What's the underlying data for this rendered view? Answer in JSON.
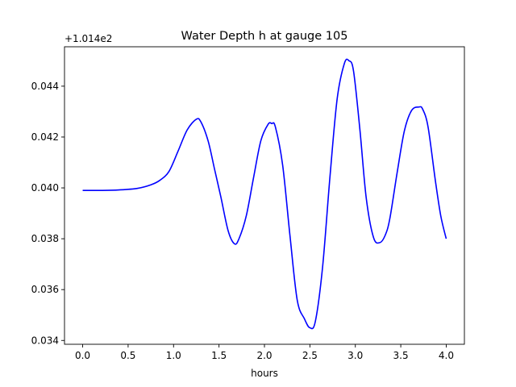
{
  "chart_data": {
    "type": "line",
    "title": "Water Depth h at gauge 105",
    "xlabel": "hours",
    "ylabel": "",
    "offset_label": "+1.014e2",
    "xlim": [
      -0.2,
      4.2
    ],
    "ylim": [
      0.03385,
      0.04555
    ],
    "xticks": [
      0.0,
      0.5,
      1.0,
      1.5,
      2.0,
      2.5,
      3.0,
      3.5,
      4.0
    ],
    "xtick_labels": [
      "0.0",
      "0.5",
      "1.0",
      "1.5",
      "2.0",
      "2.5",
      "3.0",
      "3.5",
      "4.0"
    ],
    "yticks": [
      0.034,
      0.036,
      0.038,
      0.04,
      0.042,
      0.044
    ],
    "ytick_labels": [
      "0.034",
      "0.036",
      "0.038",
      "0.040",
      "0.042",
      "0.044"
    ],
    "grid": false,
    "series": [
      {
        "color": "#0000ff",
        "x": [
          0.0,
          0.2,
          0.4,
          0.6,
          0.75,
          0.85,
          0.95,
          1.05,
          1.15,
          1.25,
          1.3,
          1.38,
          1.45,
          1.52,
          1.6,
          1.67,
          1.72,
          1.8,
          1.88,
          1.96,
          2.04,
          2.08,
          2.12,
          2.2,
          2.28,
          2.36,
          2.44,
          2.5,
          2.56,
          2.64,
          2.72,
          2.8,
          2.88,
          2.93,
          2.98,
          3.05,
          3.12,
          3.2,
          3.27,
          3.33,
          3.38,
          3.46,
          3.54,
          3.62,
          3.7,
          3.74,
          3.8,
          3.88,
          3.94,
          4.0
        ],
        "y": [
          0.0399,
          0.0399,
          0.03992,
          0.03998,
          0.04012,
          0.0403,
          0.04065,
          0.04145,
          0.04228,
          0.0427,
          0.0426,
          0.04185,
          0.04075,
          0.03965,
          0.03832,
          0.0378,
          0.038,
          0.0389,
          0.0404,
          0.04185,
          0.0425,
          0.04253,
          0.0424,
          0.0409,
          0.03815,
          0.0356,
          0.03485,
          0.0345,
          0.03475,
          0.0369,
          0.0404,
          0.0435,
          0.0449,
          0.045,
          0.0446,
          0.0423,
          0.0396,
          0.03805,
          0.03785,
          0.03815,
          0.0388,
          0.0406,
          0.04225,
          0.04305,
          0.04318,
          0.0431,
          0.0424,
          0.0403,
          0.0389,
          0.038
        ]
      }
    ]
  }
}
